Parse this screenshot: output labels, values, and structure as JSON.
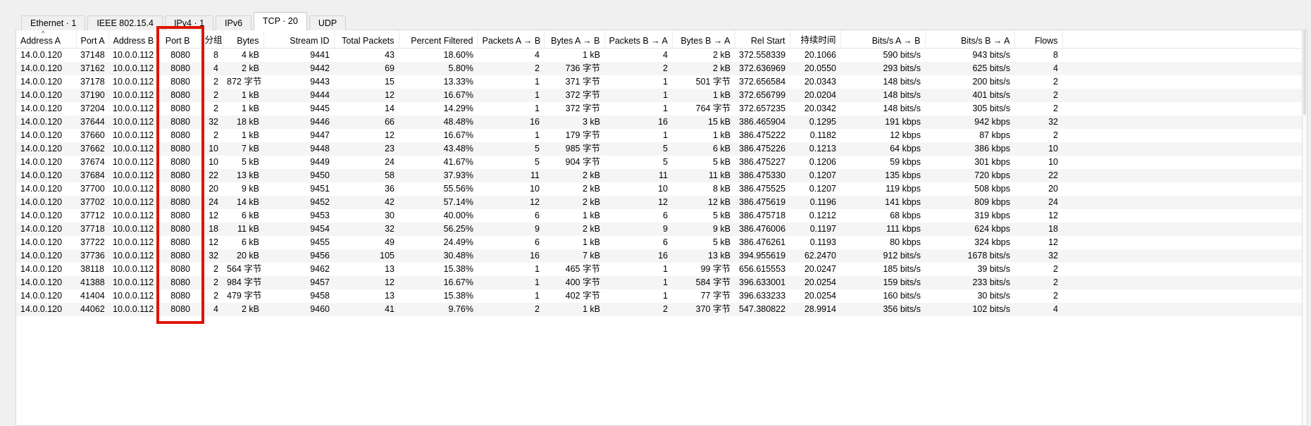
{
  "tabs": [
    {
      "label": "Ethernet · 1",
      "active": false
    },
    {
      "label": "IEEE 802.15.4",
      "active": false
    },
    {
      "label": "IPv4 · 1",
      "active": false
    },
    {
      "label": "IPv6",
      "active": false
    },
    {
      "label": "TCP · 20",
      "active": true
    },
    {
      "label": "UDP",
      "active": false
    }
  ],
  "table": {
    "columns": [
      "Address A",
      "Port A",
      "Address B",
      "Port B",
      "分组",
      "Bytes",
      "Stream ID",
      "Total Packets",
      "Percent Filtered",
      "Packets A → B",
      "Bytes A → B",
      "Packets B → A",
      "Bytes B → A",
      "Rel Start",
      "持续时间",
      "Bits/s A → B",
      "Bits/s B → A",
      "Flows"
    ],
    "sort_column": "Address A",
    "sort_indicator": "^",
    "rows": [
      [
        "14.0.0.120",
        "37148",
        "10.0.0.112",
        "8080",
        "8",
        "4 kB",
        "9441",
        "43",
        "18.60%",
        "4",
        "1 kB",
        "4",
        "2 kB",
        "372.558339",
        "20.1066",
        "590 bits/s",
        "943 bits/s",
        "8"
      ],
      [
        "14.0.0.120",
        "37162",
        "10.0.0.112",
        "8080",
        "4",
        "2 kB",
        "9442",
        "69",
        "5.80%",
        "2",
        "736 字节",
        "2",
        "2 kB",
        "372.636969",
        "20.0550",
        "293 bits/s",
        "625 bits/s",
        "4"
      ],
      [
        "14.0.0.120",
        "37178",
        "10.0.0.112",
        "8080",
        "2",
        "872 字节",
        "9443",
        "15",
        "13.33%",
        "1",
        "371 字节",
        "1",
        "501 字节",
        "372.656584",
        "20.0343",
        "148 bits/s",
        "200 bits/s",
        "2"
      ],
      [
        "14.0.0.120",
        "37190",
        "10.0.0.112",
        "8080",
        "2",
        "1 kB",
        "9444",
        "12",
        "16.67%",
        "1",
        "372 字节",
        "1",
        "1 kB",
        "372.656799",
        "20.0204",
        "148 bits/s",
        "401 bits/s",
        "2"
      ],
      [
        "14.0.0.120",
        "37204",
        "10.0.0.112",
        "8080",
        "2",
        "1 kB",
        "9445",
        "14",
        "14.29%",
        "1",
        "372 字节",
        "1",
        "764 字节",
        "372.657235",
        "20.0342",
        "148 bits/s",
        "305 bits/s",
        "2"
      ],
      [
        "14.0.0.120",
        "37644",
        "10.0.0.112",
        "8080",
        "32",
        "18 kB",
        "9446",
        "66",
        "48.48%",
        "16",
        "3 kB",
        "16",
        "15 kB",
        "386.465904",
        "0.1295",
        "191 kbps",
        "942 kbps",
        "32"
      ],
      [
        "14.0.0.120",
        "37660",
        "10.0.0.112",
        "8080",
        "2",
        "1 kB",
        "9447",
        "12",
        "16.67%",
        "1",
        "179 字节",
        "1",
        "1 kB",
        "386.475222",
        "0.1182",
        "12 kbps",
        "87 kbps",
        "2"
      ],
      [
        "14.0.0.120",
        "37662",
        "10.0.0.112",
        "8080",
        "10",
        "7 kB",
        "9448",
        "23",
        "43.48%",
        "5",
        "985 字节",
        "5",
        "6 kB",
        "386.475226",
        "0.1213",
        "64 kbps",
        "386 kbps",
        "10"
      ],
      [
        "14.0.0.120",
        "37674",
        "10.0.0.112",
        "8080",
        "10",
        "5 kB",
        "9449",
        "24",
        "41.67%",
        "5",
        "904 字节",
        "5",
        "5 kB",
        "386.475227",
        "0.1206",
        "59 kbps",
        "301 kbps",
        "10"
      ],
      [
        "14.0.0.120",
        "37684",
        "10.0.0.112",
        "8080",
        "22",
        "13 kB",
        "9450",
        "58",
        "37.93%",
        "11",
        "2 kB",
        "11",
        "11 kB",
        "386.475330",
        "0.1207",
        "135 kbps",
        "720 kbps",
        "22"
      ],
      [
        "14.0.0.120",
        "37700",
        "10.0.0.112",
        "8080",
        "20",
        "9 kB",
        "9451",
        "36",
        "55.56%",
        "10",
        "2 kB",
        "10",
        "8 kB",
        "386.475525",
        "0.1207",
        "119 kbps",
        "508 kbps",
        "20"
      ],
      [
        "14.0.0.120",
        "37702",
        "10.0.0.112",
        "8080",
        "24",
        "14 kB",
        "9452",
        "42",
        "57.14%",
        "12",
        "2 kB",
        "12",
        "12 kB",
        "386.475619",
        "0.1196",
        "141 kbps",
        "809 kbps",
        "24"
      ],
      [
        "14.0.0.120",
        "37712",
        "10.0.0.112",
        "8080",
        "12",
        "6 kB",
        "9453",
        "30",
        "40.00%",
        "6",
        "1 kB",
        "6",
        "5 kB",
        "386.475718",
        "0.1212",
        "68 kbps",
        "319 kbps",
        "12"
      ],
      [
        "14.0.0.120",
        "37718",
        "10.0.0.112",
        "8080",
        "18",
        "11 kB",
        "9454",
        "32",
        "56.25%",
        "9",
        "2 kB",
        "9",
        "9 kB",
        "386.476006",
        "0.1197",
        "111 kbps",
        "624 kbps",
        "18"
      ],
      [
        "14.0.0.120",
        "37722",
        "10.0.0.112",
        "8080",
        "12",
        "6 kB",
        "9455",
        "49",
        "24.49%",
        "6",
        "1 kB",
        "6",
        "5 kB",
        "386.476261",
        "0.1193",
        "80 kbps",
        "324 kbps",
        "12"
      ],
      [
        "14.0.0.120",
        "37736",
        "10.0.0.112",
        "8080",
        "32",
        "20 kB",
        "9456",
        "105",
        "30.48%",
        "16",
        "7 kB",
        "16",
        "13 kB",
        "394.955619",
        "62.2470",
        "912 bits/s",
        "1678 bits/s",
        "32"
      ],
      [
        "14.0.0.120",
        "38118",
        "10.0.0.112",
        "8080",
        "2",
        "564 字节",
        "9462",
        "13",
        "15.38%",
        "1",
        "465 字节",
        "1",
        "99 字节",
        "656.615553",
        "20.0247",
        "185 bits/s",
        "39 bits/s",
        "2"
      ],
      [
        "14.0.0.120",
        "41388",
        "10.0.0.112",
        "8080",
        "2",
        "984 字节",
        "9457",
        "12",
        "16.67%",
        "1",
        "400 字节",
        "1",
        "584 字节",
        "396.633001",
        "20.0254",
        "159 bits/s",
        "233 bits/s",
        "2"
      ],
      [
        "14.0.0.120",
        "41404",
        "10.0.0.112",
        "8080",
        "2",
        "479 字节",
        "9458",
        "13",
        "15.38%",
        "1",
        "402 字节",
        "1",
        "77 字节",
        "396.633233",
        "20.0254",
        "160 bits/s",
        "30 bits/s",
        "2"
      ],
      [
        "14.0.0.120",
        "44062",
        "10.0.0.112",
        "8080",
        "4",
        "2 kB",
        "9460",
        "41",
        "9.76%",
        "2",
        "1 kB",
        "2",
        "370 字节",
        "547.380822",
        "28.9914",
        "356 bits/s",
        "102 bits/s",
        "4"
      ]
    ]
  },
  "annotation": {
    "type": "red-rectangle",
    "highlighted_column": "Port B",
    "color": "#e01300"
  }
}
